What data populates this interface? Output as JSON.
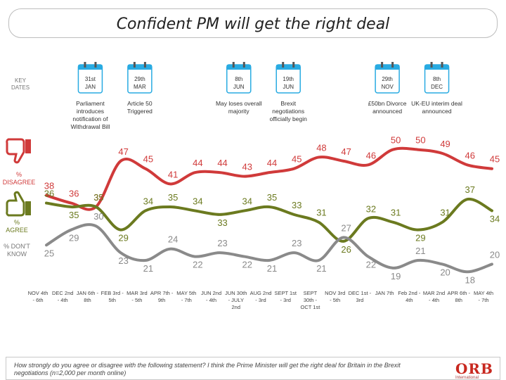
{
  "title": "Confident PM will get the right deal",
  "key_dates_label": "KEY DATES",
  "labels": {
    "disagree": "% DISAGREE",
    "agree": "% AGREE",
    "dont_know": "% DON'T KNOW"
  },
  "events": [
    {
      "date": "31st JAN",
      "x_index": 2,
      "desc": "Parliament introduces notification of Withdrawal Bill"
    },
    {
      "date": "29th MAR",
      "x_index": 4,
      "desc": "Article 50 Triggered"
    },
    {
      "date": "8th JUN",
      "x_index": 8,
      "desc": "May loses overall majority"
    },
    {
      "date": "19th JUN",
      "x_index": 10,
      "desc": "Brexit negotiations officially begin"
    },
    {
      "date": "29th NOV",
      "x_index": 14,
      "desc": "£50bn Divorce announced"
    },
    {
      "date": "8th DEC",
      "x_index": 16,
      "desc": "UK-EU interim deal announced"
    }
  ],
  "footnote": "How strongly do you agree or disagree with the following statement? I think the Prime Minister will get the right deal for Britain in the Brexit negotiations (n=2,000 per month online)",
  "logo": {
    "main": "ORB",
    "sub": "International"
  },
  "colors": {
    "disagree": "#d03a3a",
    "agree": "#6b7a1f",
    "dont_know": "#8a8a8a"
  },
  "chart_data": {
    "type": "line",
    "title": "Confident PM will get the right deal",
    "categories": [
      "NOV 4th - 6th",
      "DEC 2nd - 4th",
      "JAN 6th - 8th",
      "FEB 3rd - 5th",
      "MAR 3rd - 5th",
      "APR 7th - 9th",
      "MAY 5th - 7th",
      "JUN 2nd - 4th",
      "JUN 30th - JULY 2nd",
      "AUG 2nd - 3rd",
      "SEPT 1st - 3rd",
      "SEPT 30th - OCT 1st",
      "NOV 3rd - 5th",
      "DEC 1st - 3rd",
      "JAN 7th",
      "Feb 2nd - 4th",
      "MAR 2nd - 4th",
      "APR 6th - 8th",
      "MAY 4th - 7th"
    ],
    "category_labels": [
      [
        "NOV 4th",
        "- 6th"
      ],
      [
        "DEC 2nd",
        "- 4th"
      ],
      [
        "JAN 6th -",
        "8th"
      ],
      [
        "FEB 3rd -",
        "5th"
      ],
      [
        "MAR 3rd",
        "- 5th"
      ],
      [
        "APR 7th -",
        "9th"
      ],
      [
        "MAY 5th",
        "- 7th"
      ],
      [
        "JUN 2nd",
        "- 4th"
      ],
      [
        "JUN 30th",
        "- JULY",
        "2nd"
      ],
      [
        "AUG 2nd",
        "- 3rd"
      ],
      [
        "SEPT 1st",
        "- 3rd"
      ],
      [
        "SEPT",
        "30th -",
        "OCT 1st"
      ],
      [
        "NOV 3rd",
        "- 5th"
      ],
      [
        "DEC 1st -",
        "3rd"
      ],
      [
        "JAN 7th"
      ],
      [
        "Feb 2nd -",
        "4th"
      ],
      [
        "MAR 2nd",
        "- 4th"
      ],
      [
        "APR 6th -",
        "8th"
      ],
      [
        "MAY 4th",
        "- 7th"
      ]
    ],
    "series": [
      {
        "name": "% DISAGREE",
        "values": [
          38,
          36,
          35,
          47,
          45,
          41,
          44,
          44,
          43,
          44,
          45,
          48,
          47,
          46,
          50,
          50,
          49,
          46,
          45
        ]
      },
      {
        "name": "% AGREE",
        "values": [
          36,
          35,
          35,
          29,
          34,
          35,
          34,
          33,
          34,
          35,
          33,
          31,
          26,
          32,
          31,
          29,
          31,
          37,
          34
        ]
      },
      {
        "name": "% DON'T KNOW",
        "values": [
          25,
          29,
          30,
          23,
          21,
          24,
          22,
          23,
          22,
          21,
          23,
          21,
          27,
          22,
          19,
          21,
          20,
          18,
          20
        ]
      }
    ],
    "ylim": [
      14,
      56
    ]
  }
}
